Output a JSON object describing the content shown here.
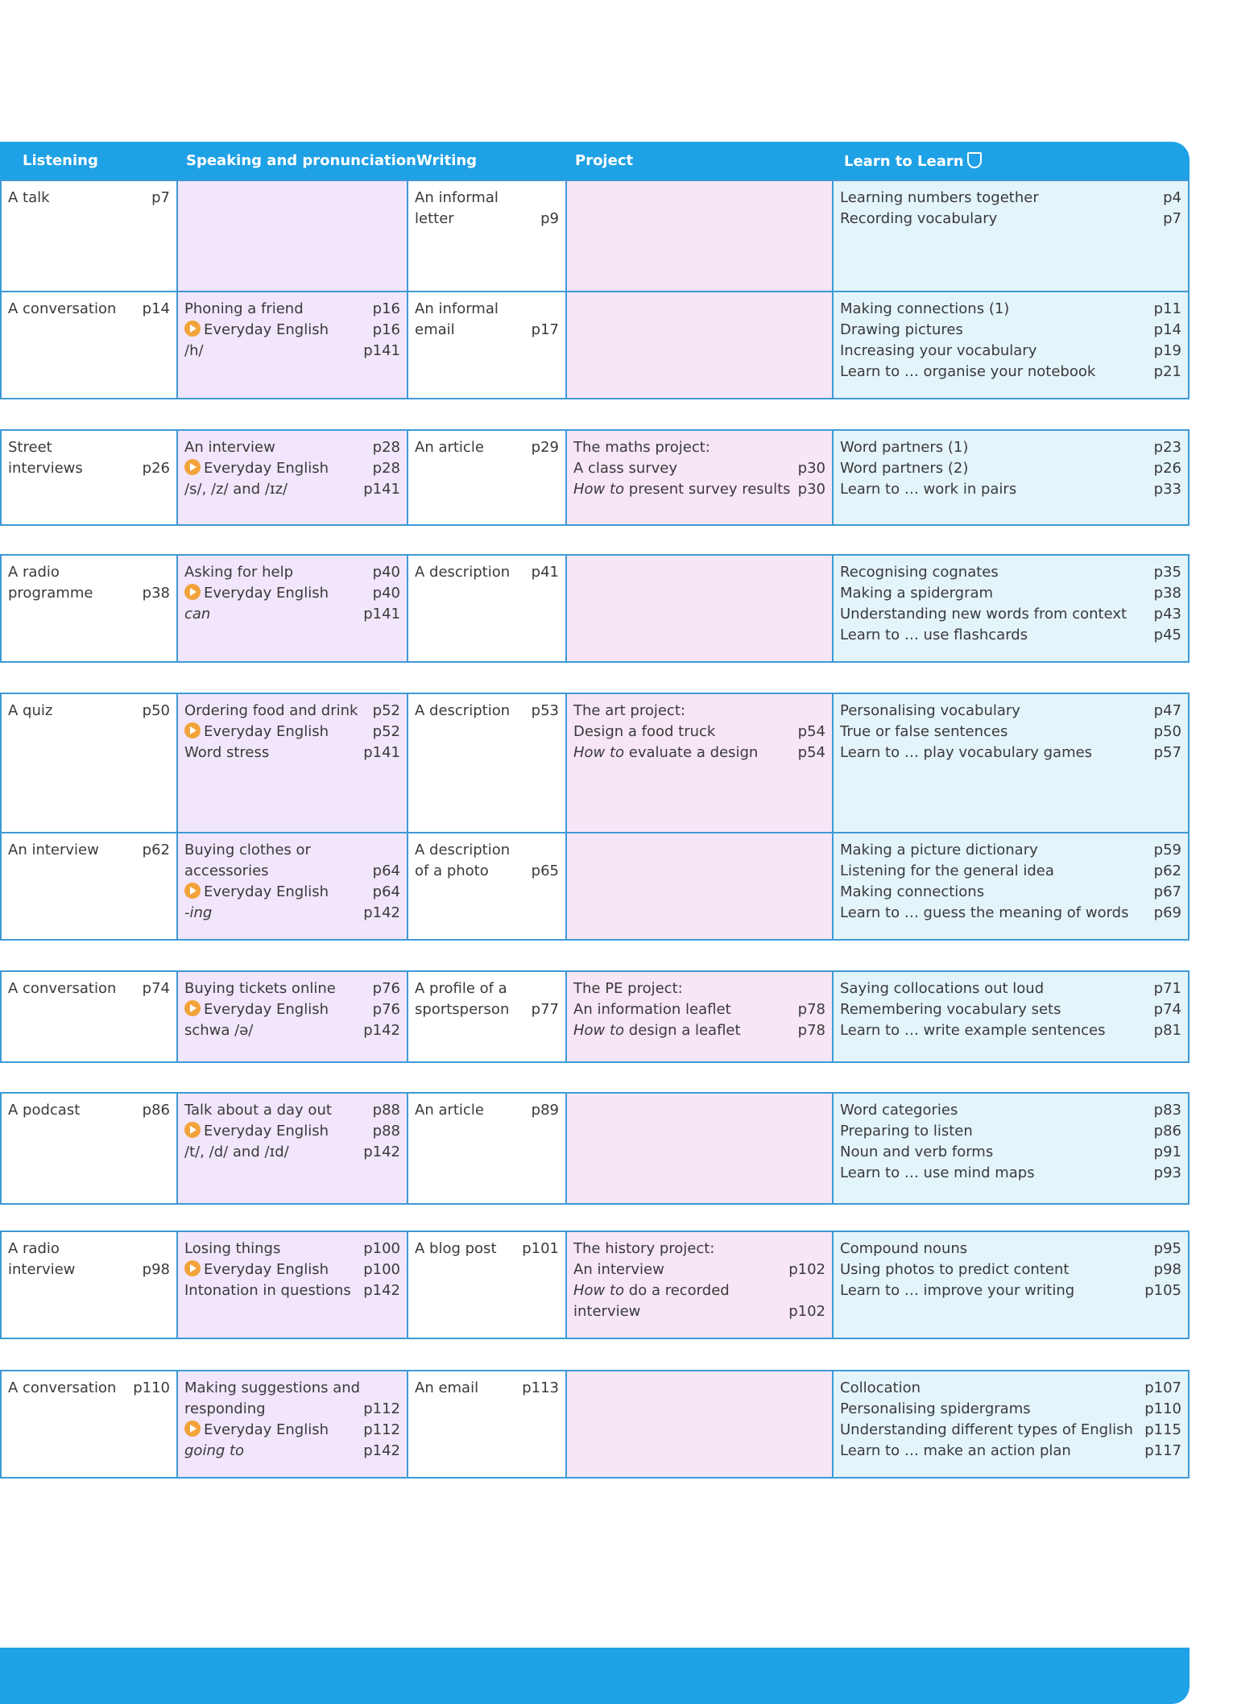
{
  "header": {
    "listening": "Listening",
    "speaking": "Speaking and pronunciation",
    "writing": "Writing",
    "project": "Project",
    "learn": "Learn to Learn"
  },
  "everyday": "Everyday English",
  "rows": [
    {
      "listening": [
        {
          "t": "A talk",
          "p": "p7"
        }
      ],
      "speaking": [],
      "writing": [
        {
          "t": "An informal",
          "p": ""
        },
        {
          "t": "letter",
          "p": "p9"
        }
      ],
      "project": [],
      "learn": [
        {
          "t": "Learning numbers together",
          "p": "p4"
        },
        {
          "t": "Recording vocabulary",
          "p": "p7"
        }
      ]
    },
    {
      "listening": [
        {
          "t": "A conversation",
          "p": "p14"
        }
      ],
      "speaking": [
        {
          "t": "Phoning a friend",
          "p": "p16"
        },
        {
          "t": "Everyday English",
          "p": "p16",
          "play": true
        },
        {
          "t": "/h/",
          "p": "p141"
        }
      ],
      "writing": [
        {
          "t": "An informal",
          "p": ""
        },
        {
          "t": "email",
          "p": "p17"
        }
      ],
      "project": [],
      "learn": [
        {
          "t": "Making connections (1)",
          "p": "p11"
        },
        {
          "t": "Drawing pictures",
          "p": "p14"
        },
        {
          "t": "Increasing your vocabulary",
          "p": "p19"
        },
        {
          "t": "Learn to … organise your notebook",
          "p": "p21"
        }
      ]
    },
    {
      "listening": [
        {
          "t": "Street",
          "p": ""
        },
        {
          "t": "interviews",
          "p": "p26"
        }
      ],
      "speaking": [
        {
          "t": "An interview",
          "p": "p28"
        },
        {
          "t": "Everyday English",
          "p": "p28",
          "play": true
        },
        {
          "t": "/s/, /z/ and /ɪz/",
          "p": "p141"
        }
      ],
      "writing": [
        {
          "t": "An article",
          "p": "p29"
        }
      ],
      "project": [
        {
          "t": "The maths project:",
          "p": ""
        },
        {
          "t": "A class survey",
          "p": "p30"
        },
        {
          "t": "How to present survey results",
          "p": "p30",
          "it": "How to"
        }
      ],
      "learn": [
        {
          "t": "Word partners (1)",
          "p": "p23"
        },
        {
          "t": "Word partners (2)",
          "p": "p26"
        },
        {
          "t": "Learn to … work in pairs",
          "p": "p33"
        }
      ]
    },
    {
      "listening": [
        {
          "t": "A radio",
          "p": ""
        },
        {
          "t": "programme",
          "p": "p38"
        }
      ],
      "speaking": [
        {
          "t": "Asking for help",
          "p": "p40"
        },
        {
          "t": "Everyday English",
          "p": "p40",
          "play": true
        },
        {
          "t": "can",
          "p": "p141",
          "it": "can"
        }
      ],
      "writing": [
        {
          "t": "A description",
          "p": "p41"
        }
      ],
      "project": [],
      "learn": [
        {
          "t": "Recognising cognates",
          "p": "p35"
        },
        {
          "t": "Making a spidergram",
          "p": "p38"
        },
        {
          "t": "Understanding new words from context",
          "p": "p43"
        },
        {
          "t": "Learn to … use flashcards",
          "p": "p45"
        }
      ]
    },
    {
      "listening": [
        {
          "t": "A quiz",
          "p": "p50"
        }
      ],
      "speaking": [
        {
          "t": "Ordering food and drink",
          "p": "p52"
        },
        {
          "t": "Everyday English",
          "p": "p52",
          "play": true
        },
        {
          "t": "Word stress",
          "p": "p141"
        }
      ],
      "writing": [
        {
          "t": "A description",
          "p": "p53"
        }
      ],
      "project": [
        {
          "t": "The art project:",
          "p": ""
        },
        {
          "t": "Design a food truck",
          "p": "p54"
        },
        {
          "t": "How to evaluate a design",
          "p": "p54",
          "it": "How to"
        }
      ],
      "learn": [
        {
          "t": "Personalising vocabulary",
          "p": "p47"
        },
        {
          "t": "True or false sentences",
          "p": "p50"
        },
        {
          "t": "Learn to … play vocabulary games",
          "p": "p57"
        }
      ]
    },
    {
      "listening": [
        {
          "t": "An interview",
          "p": "p62"
        }
      ],
      "speaking": [
        {
          "t": "Buying clothes or",
          "p": ""
        },
        {
          "t": "accessories",
          "p": "p64"
        },
        {
          "t": "Everyday English",
          "p": "p64",
          "play": true
        },
        {
          "t": "-ing",
          "p": "p142",
          "it": "-ing"
        }
      ],
      "writing": [
        {
          "t": "A description",
          "p": ""
        },
        {
          "t": "of a photo",
          "p": "p65"
        }
      ],
      "project": [],
      "learn": [
        {
          "t": "Making a picture dictionary",
          "p": "p59"
        },
        {
          "t": "Listening for the general idea",
          "p": "p62"
        },
        {
          "t": "Making connections",
          "p": "p67"
        },
        {
          "t": "Learn to … guess the meaning of words",
          "p": "p69"
        }
      ]
    },
    {
      "listening": [
        {
          "t": "A conversation",
          "p": "p74"
        }
      ],
      "speaking": [
        {
          "t": "Buying tickets online",
          "p": "p76"
        },
        {
          "t": "Everyday English",
          "p": "p76",
          "play": true
        },
        {
          "t": "schwa /ə/",
          "p": "p142"
        }
      ],
      "writing": [
        {
          "t": "A profile of a",
          "p": ""
        },
        {
          "t": "sportsperson",
          "p": "p77"
        }
      ],
      "project": [
        {
          "t": "The PE project:",
          "p": ""
        },
        {
          "t": "An information leaflet",
          "p": "p78"
        },
        {
          "t": "How to design a leaflet",
          "p": "p78",
          "it": "How to"
        }
      ],
      "learn": [
        {
          "t": "Saying collocations out loud",
          "p": "p71"
        },
        {
          "t": "Remembering vocabulary sets",
          "p": "p74"
        },
        {
          "t": "Learn to … write example sentences",
          "p": "p81"
        }
      ]
    },
    {
      "listening": [
        {
          "t": "A podcast",
          "p": "p86"
        }
      ],
      "speaking": [
        {
          "t": "Talk about a day out",
          "p": "p88"
        },
        {
          "t": "Everyday English",
          "p": "p88",
          "play": true
        },
        {
          "t": "/t/, /d/ and /ɪd/",
          "p": "p142"
        }
      ],
      "writing": [
        {
          "t": "An article",
          "p": "p89"
        }
      ],
      "project": [],
      "learn": [
        {
          "t": "Word categories",
          "p": "p83"
        },
        {
          "t": "Preparing to listen",
          "p": "p86"
        },
        {
          "t": "Noun and verb forms",
          "p": "p91"
        },
        {
          "t": "Learn to … use mind maps",
          "p": "p93"
        }
      ]
    },
    {
      "listening": [
        {
          "t": "A radio",
          "p": ""
        },
        {
          "t": "interview",
          "p": "p98"
        }
      ],
      "speaking": [
        {
          "t": "Losing things",
          "p": "p100"
        },
        {
          "t": "Everyday English",
          "p": "p100",
          "play": true
        },
        {
          "t": "Intonation in questions",
          "p": "p142"
        }
      ],
      "writing": [
        {
          "t": "A blog post",
          "p": "p101"
        }
      ],
      "project": [
        {
          "t": "The history project:",
          "p": ""
        },
        {
          "t": "An interview",
          "p": "p102"
        },
        {
          "t": "How to do a recorded",
          "p": "",
          "it": "How to"
        },
        {
          "t": "interview",
          "p": "p102"
        }
      ],
      "learn": [
        {
          "t": "Compound nouns",
          "p": "p95"
        },
        {
          "t": "Using photos to predict content",
          "p": "p98"
        },
        {
          "t": "Learn to … improve your writing",
          "p": "p105"
        }
      ]
    },
    {
      "listening": [
        {
          "t": "A conversation",
          "p": "p110"
        }
      ],
      "speaking": [
        {
          "t": "Making suggestions and",
          "p": ""
        },
        {
          "t": "responding",
          "p": "p112"
        },
        {
          "t": "Everyday English",
          "p": "p112",
          "play": true
        },
        {
          "t": "going to",
          "p": "p142",
          "it": "going to"
        }
      ],
      "writing": [
        {
          "t": "An email",
          "p": "p113"
        }
      ],
      "project": [],
      "learn": [
        {
          "t": "Collocation",
          "p": "p107"
        },
        {
          "t": "Personalising spidergrams",
          "p": "p110"
        },
        {
          "t": "Understanding different types of English",
          "p": "p115"
        },
        {
          "t": "Learn to … make an action plan",
          "p": "p117"
        }
      ]
    }
  ]
}
